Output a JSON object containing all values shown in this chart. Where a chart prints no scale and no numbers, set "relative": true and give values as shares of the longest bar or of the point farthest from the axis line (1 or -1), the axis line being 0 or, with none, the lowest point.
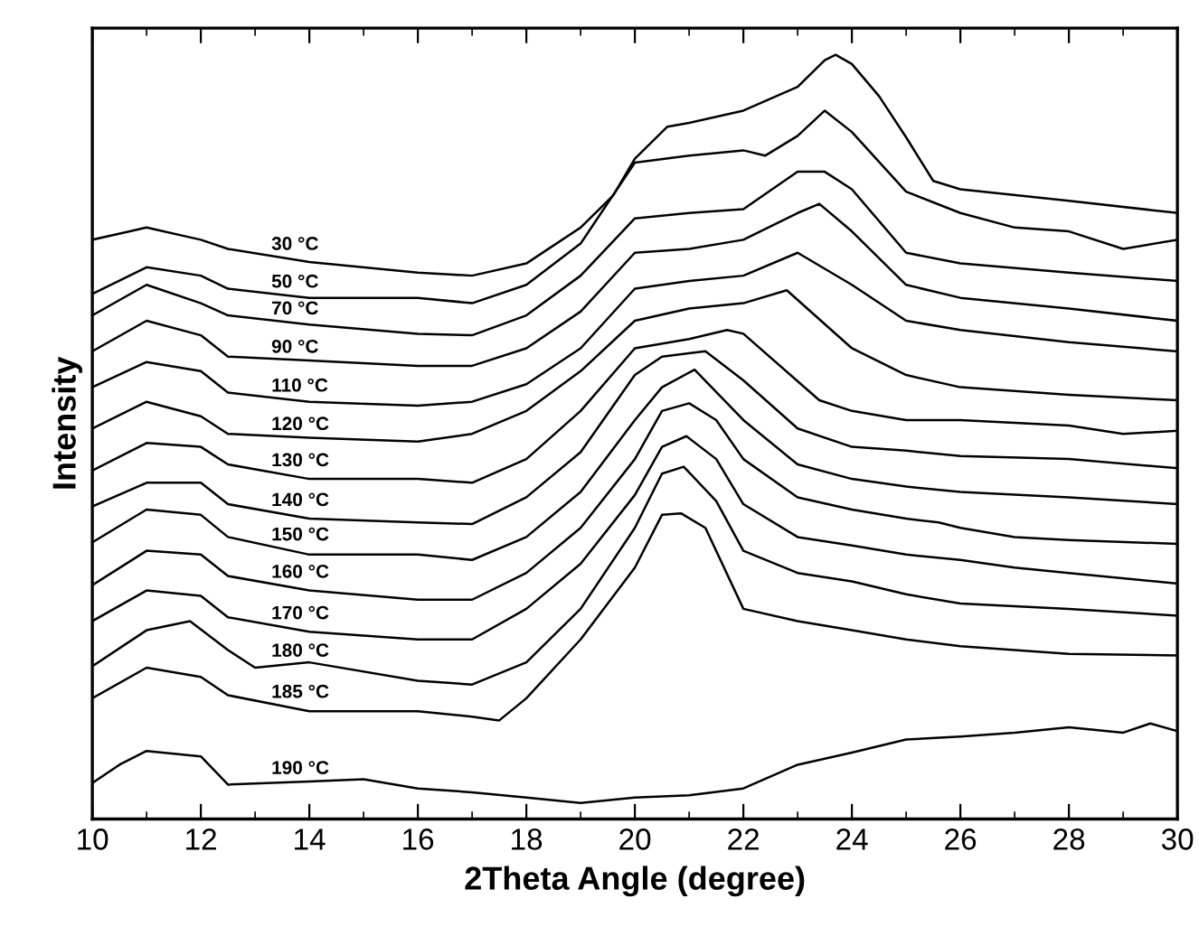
{
  "chart_data": {
    "type": "line",
    "relative": true,
    "xlabel": "2Theta Angle (degree)",
    "ylabel": "Intensity",
    "xlim": [
      10,
      30
    ],
    "xticks": [
      10,
      12,
      14,
      16,
      18,
      20,
      22,
      24,
      26,
      28,
      30
    ],
    "grid": false,
    "legend": false,
    "marker": "none",
    "line_style": "solid",
    "tick_labels": "x",
    "series": [
      {
        "name": "30 °C",
        "color": "#000000",
        "x": [
          10,
          11,
          12,
          12.5,
          14,
          16,
          17,
          18,
          19,
          19.6,
          20,
          20.6,
          21,
          22,
          23,
          23.5,
          23.7,
          24,
          24.5,
          25,
          25.5,
          26,
          28,
          30
        ],
        "values": [
          0.758,
          0.774,
          0.758,
          0.746,
          0.729,
          0.715,
          0.711,
          0.727,
          0.774,
          0.816,
          0.864,
          0.906,
          0.911,
          0.927,
          0.958,
          0.993,
          1,
          0.988,
          0.946,
          0.892,
          0.835,
          0.824,
          0.809,
          0.793
        ]
      },
      {
        "name": "50 °C",
        "color": "#000000",
        "x": [
          10,
          11,
          12,
          12.5,
          14,
          16,
          17,
          18,
          19,
          20,
          21,
          22,
          22.4,
          23,
          23.5,
          24,
          25,
          26,
          27,
          28,
          29,
          30
        ],
        "values": [
          0.687,
          0.722,
          0.711,
          0.694,
          0.682,
          0.682,
          0.675,
          0.699,
          0.753,
          0.859,
          0.868,
          0.875,
          0.868,
          0.894,
          0.927,
          0.899,
          0.821,
          0.793,
          0.774,
          0.769,
          0.746,
          0.758
        ]
      },
      {
        "name": "70 °C",
        "color": "#000000",
        "x": [
          10,
          11,
          12,
          12.5,
          14,
          16,
          17,
          18,
          19,
          20,
          21,
          22,
          23,
          23.5,
          24,
          25,
          26,
          28,
          30
        ],
        "values": [
          0.659,
          0.699,
          0.675,
          0.659,
          0.647,
          0.635,
          0.633,
          0.659,
          0.711,
          0.786,
          0.793,
          0.798,
          0.847,
          0.847,
          0.824,
          0.741,
          0.727,
          0.715,
          0.704
        ]
      },
      {
        "name": "90 °C",
        "color": "#000000",
        "x": [
          10,
          11,
          12,
          12.5,
          14,
          16,
          17,
          18,
          19,
          20,
          21,
          22,
          23,
          23.4,
          24,
          25,
          26,
          28,
          30
        ],
        "values": [
          0.612,
          0.652,
          0.633,
          0.605,
          0.6,
          0.593,
          0.593,
          0.616,
          0.664,
          0.741,
          0.746,
          0.758,
          0.793,
          0.805,
          0.769,
          0.699,
          0.682,
          0.668,
          0.652
        ]
      },
      {
        "name": "110 °C",
        "color": "#000000",
        "x": [
          10,
          11,
          12,
          12.5,
          14,
          16,
          17,
          18,
          19,
          20,
          21,
          22,
          23,
          24,
          25,
          26,
          28,
          30
        ],
        "values": [
          0.565,
          0.598,
          0.586,
          0.558,
          0.546,
          0.541,
          0.546,
          0.569,
          0.616,
          0.694,
          0.704,
          0.711,
          0.741,
          0.699,
          0.652,
          0.64,
          0.624,
          0.612
        ]
      },
      {
        "name": "120 °C",
        "color": "#000000",
        "x": [
          10,
          11,
          12,
          12.5,
          14,
          16,
          17,
          18,
          19,
          20,
          21,
          22,
          22.8,
          24,
          25,
          26,
          28,
          30
        ],
        "values": [
          0.511,
          0.546,
          0.527,
          0.504,
          0.499,
          0.494,
          0.504,
          0.534,
          0.586,
          0.652,
          0.668,
          0.675,
          0.692,
          0.616,
          0.581,
          0.565,
          0.555,
          0.548
        ]
      },
      {
        "name": "130 °C",
        "color": "#000000",
        "x": [
          10,
          11,
          12,
          12.5,
          14,
          16,
          17,
          18,
          19,
          20,
          21,
          21.7,
          22,
          23.4,
          24,
          25,
          26,
          28,
          29,
          30
        ],
        "values": [
          0.456,
          0.492,
          0.487,
          0.464,
          0.445,
          0.445,
          0.44,
          0.471,
          0.534,
          0.616,
          0.628,
          0.64,
          0.635,
          0.548,
          0.534,
          0.522,
          0.522,
          0.515,
          0.504,
          0.508
        ]
      },
      {
        "name": "140 °C",
        "color": "#000000",
        "x": [
          10,
          11,
          12,
          12.5,
          14,
          16,
          17,
          18,
          19,
          20,
          20.5,
          21.3,
          22,
          23,
          24,
          25,
          26,
          28,
          30
        ],
        "values": [
          0.409,
          0.44,
          0.44,
          0.412,
          0.393,
          0.388,
          0.386,
          0.421,
          0.48,
          0.581,
          0.605,
          0.612,
          0.574,
          0.511,
          0.487,
          0.482,
          0.475,
          0.471,
          0.459
        ]
      },
      {
        "name": "150 °C",
        "color": "#000000",
        "x": [
          10,
          11,
          12,
          12.5,
          14,
          16,
          17,
          18,
          19,
          20,
          20.5,
          21.1,
          22,
          23,
          24,
          25,
          26,
          28,
          30
        ],
        "values": [
          0.362,
          0.405,
          0.398,
          0.369,
          0.346,
          0.346,
          0.339,
          0.369,
          0.428,
          0.522,
          0.565,
          0.588,
          0.522,
          0.464,
          0.445,
          0.435,
          0.428,
          0.421,
          0.412
        ]
      },
      {
        "name": "160 °C",
        "color": "#000000",
        "x": [
          10,
          11,
          12,
          12.5,
          14,
          16,
          17,
          18,
          19,
          20,
          20.5,
          21,
          21.5,
          22,
          23,
          24,
          25,
          25.6,
          26,
          27,
          28,
          30
        ],
        "values": [
          0.306,
          0.351,
          0.346,
          0.318,
          0.299,
          0.287,
          0.287,
          0.322,
          0.381,
          0.471,
          0.534,
          0.544,
          0.522,
          0.471,
          0.421,
          0.405,
          0.393,
          0.388,
          0.381,
          0.369,
          0.365,
          0.36
        ]
      },
      {
        "name": "170 °C",
        "color": "#000000",
        "x": [
          10,
          11,
          12,
          12.5,
          14,
          16,
          17,
          18,
          19,
          20,
          20.5,
          20.95,
          21.5,
          22,
          23,
          24,
          25,
          26,
          27,
          28,
          30
        ],
        "values": [
          0.259,
          0.299,
          0.292,
          0.264,
          0.245,
          0.235,
          0.235,
          0.275,
          0.334,
          0.424,
          0.487,
          0.501,
          0.471,
          0.412,
          0.369,
          0.358,
          0.346,
          0.339,
          0.329,
          0.322,
          0.308
        ]
      },
      {
        "name": "180 °C",
        "color": "#000000",
        "x": [
          10,
          11,
          11.8,
          12.5,
          13,
          14,
          16,
          17,
          18,
          19,
          20,
          20.5,
          20.9,
          21.5,
          22,
          23,
          24,
          25,
          26,
          28,
          30
        ],
        "values": [
          0.2,
          0.247,
          0.259,
          0.221,
          0.198,
          0.205,
          0.181,
          0.176,
          0.205,
          0.275,
          0.381,
          0.452,
          0.461,
          0.416,
          0.351,
          0.322,
          0.311,
          0.294,
          0.282,
          0.275,
          0.266
        ]
      },
      {
        "name": "185 °C",
        "color": "#000000",
        "x": [
          10,
          11,
          12,
          12.5,
          14,
          16,
          17,
          17.5,
          18,
          19,
          20,
          20.5,
          20.85,
          21.3,
          22,
          23,
          24,
          25,
          26,
          27,
          28,
          30
        ],
        "values": [
          0.158,
          0.198,
          0.186,
          0.162,
          0.141,
          0.141,
          0.134,
          0.129,
          0.158,
          0.235,
          0.329,
          0.398,
          0.4,
          0.381,
          0.275,
          0.259,
          0.247,
          0.235,
          0.226,
          0.221,
          0.216,
          0.214
        ]
      },
      {
        "name": "190 °C",
        "color": "#000000",
        "x": [
          10,
          10.5,
          11,
          12,
          12.5,
          14,
          15,
          16,
          17,
          18,
          19,
          20,
          21,
          22,
          23,
          24,
          25,
          26,
          27,
          28,
          29,
          29.5,
          30
        ],
        "values": [
          0.047,
          0.071,
          0.089,
          0.082,
          0.045,
          0.049,
          0.052,
          0.04,
          0.035,
          0.028,
          0.021,
          0.028,
          0.031,
          0.04,
          0.071,
          0.087,
          0.104,
          0.108,
          0.113,
          0.12,
          0.113,
          0.125,
          0.115
        ]
      }
    ]
  }
}
